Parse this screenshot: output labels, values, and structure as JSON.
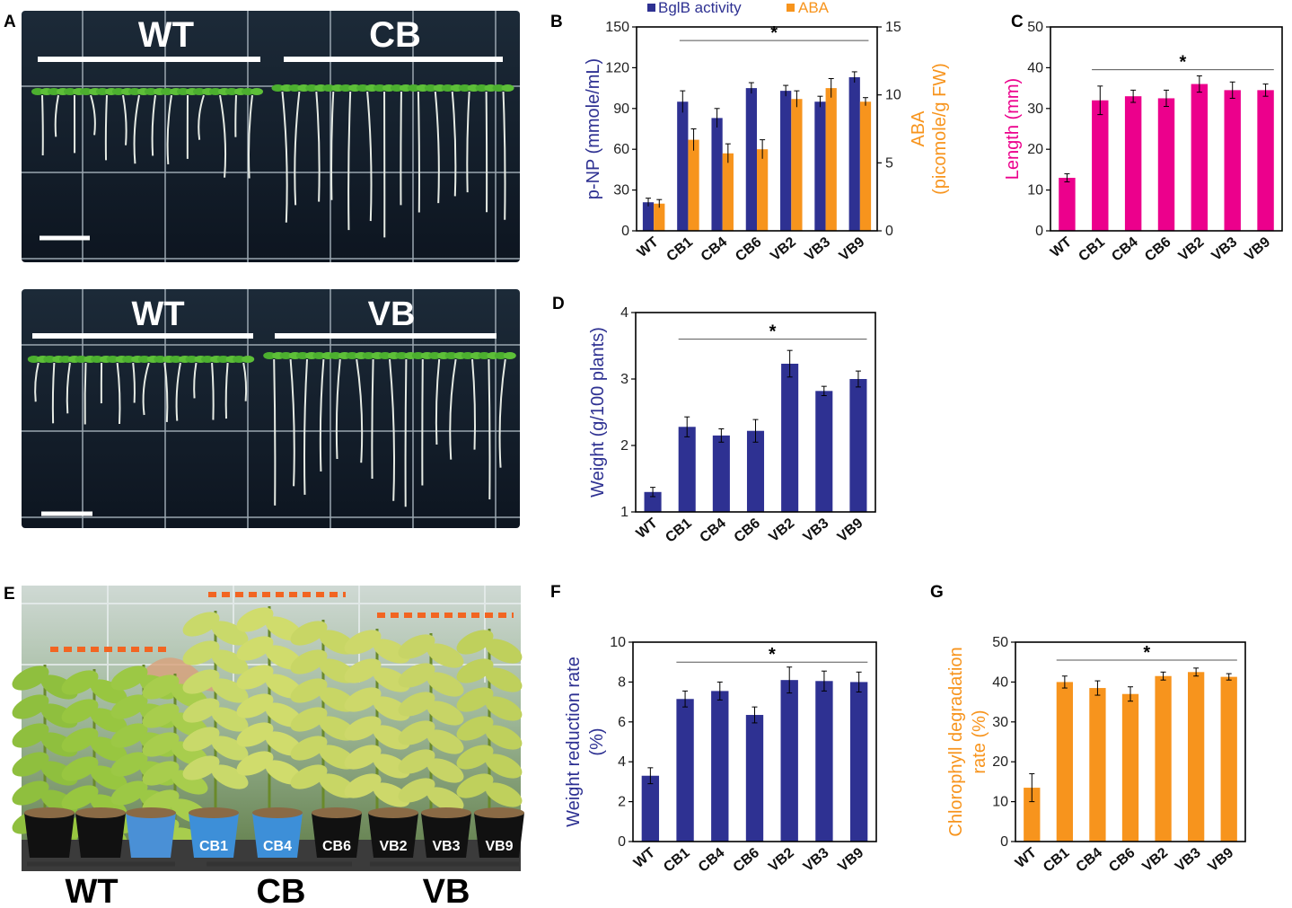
{
  "colors": {
    "blue": "#2e3192",
    "orange": "#f7941d",
    "magenta": "#ec008c",
    "axis": "#000000"
  },
  "panels": {
    "A": {
      "label": "A",
      "top": {
        "left_label": "WT",
        "right_label": "CB"
      },
      "bottom": {
        "left_label": "WT",
        "right_label": "VB"
      }
    },
    "E": {
      "label": "E",
      "pot_labels": [
        "CB1",
        "CB4",
        "CB6",
        "VB2",
        "VB3",
        "VB9"
      ],
      "group_labels": [
        "WT",
        "CB",
        "VB"
      ]
    }
  },
  "chart_data": [
    {
      "id": "B",
      "panel_label": "B",
      "type": "bar",
      "categories": [
        "WT",
        "CB1",
        "CB4",
        "CB6",
        "VB2",
        "VB3",
        "VB9"
      ],
      "series": [
        {
          "name": "BglB activity",
          "axis": "left",
          "values": [
            21,
            95,
            83,
            105,
            103,
            95,
            113
          ],
          "errors": [
            3,
            8,
            7,
            4,
            4,
            4,
            4
          ]
        },
        {
          "name": "ABA",
          "axis": "right",
          "values": [
            2.0,
            6.7,
            5.7,
            6.0,
            9.7,
            10.5,
            9.5
          ],
          "errors": [
            0.3,
            0.8,
            0.7,
            0.7,
            0.6,
            0.7,
            0.3
          ]
        }
      ],
      "ylabel": "p-NP (mmole/mL)",
      "ylim": [
        0,
        150
      ],
      "yticks": [
        0,
        30,
        60,
        90,
        120,
        150
      ],
      "y2label_line1": "ABA",
      "y2label_line2": "(picomole/g FW)",
      "y2lim": [
        0,
        15
      ],
      "y2ticks": [
        0,
        5,
        10,
        15
      ],
      "significance": "*",
      "sig_from": 1,
      "sig_to": 6,
      "sig_value": 140
    },
    {
      "id": "C",
      "panel_label": "C",
      "type": "bar",
      "categories": [
        "WT",
        "CB1",
        "CB4",
        "CB6",
        "VB2",
        "VB3",
        "VB9"
      ],
      "series": [
        {
          "name": "Length",
          "values": [
            13,
            32,
            33,
            32.5,
            36,
            34.5,
            34.5
          ],
          "errors": [
            1,
            3.5,
            1.5,
            2,
            2,
            2,
            1.5
          ]
        }
      ],
      "ylabel": "Length (mm)",
      "ylim": [
        0,
        50
      ],
      "yticks": [
        0,
        10,
        20,
        30,
        40,
        50
      ],
      "significance": "*",
      "sig_from": 1,
      "sig_to": 6,
      "sig_value": 39.5
    },
    {
      "id": "D",
      "panel_label": "D",
      "type": "bar",
      "categories": [
        "WT",
        "CB1",
        "CB4",
        "CB6",
        "VB2",
        "VB3",
        "VB9"
      ],
      "series": [
        {
          "name": "Weight",
          "values": [
            1.3,
            2.28,
            2.15,
            2.22,
            3.23,
            2.82,
            3.0
          ],
          "errors": [
            0.07,
            0.15,
            0.1,
            0.17,
            0.2,
            0.07,
            0.12
          ]
        }
      ],
      "ylabel": "Weight (g/100 plants)",
      "ylim": [
        1,
        4
      ],
      "yticks": [
        1,
        2,
        3,
        4
      ],
      "significance": "*",
      "sig_from": 1,
      "sig_to": 6,
      "sig_value": 3.6
    },
    {
      "id": "F",
      "panel_label": "F",
      "type": "bar",
      "categories": [
        "WT",
        "CB1",
        "CB4",
        "CB6",
        "VB2",
        "VB3",
        "VB9"
      ],
      "series": [
        {
          "name": "Weight reduction rate",
          "values": [
            3.3,
            7.15,
            7.55,
            6.35,
            8.1,
            8.05,
            8.0
          ],
          "errors": [
            0.4,
            0.4,
            0.45,
            0.4,
            0.65,
            0.5,
            0.5
          ]
        }
      ],
      "ylabel_line1": "Weight reduction rate",
      "ylabel_line2": "(%)",
      "ylim": [
        0,
        10
      ],
      "yticks": [
        0,
        2,
        4,
        6,
        8,
        10
      ],
      "significance": "*",
      "sig_from": 1,
      "sig_to": 6,
      "sig_value": 9.0
    },
    {
      "id": "G",
      "panel_label": "G",
      "type": "bar",
      "categories": [
        "WT",
        "CB1",
        "CB4",
        "CB6",
        "VB2",
        "VB3",
        "VB9"
      ],
      "series": [
        {
          "name": "Chlorophyll degradation rate",
          "values": [
            13.5,
            40,
            38.5,
            37,
            41.5,
            42.5,
            41.3
          ],
          "errors": [
            3.5,
            1.5,
            1.8,
            1.8,
            1,
            1,
            0.8
          ]
        }
      ],
      "ylabel_line1": "Chlorophyll degradation",
      "ylabel_line2": "rate (%)",
      "ylim": [
        0,
        50
      ],
      "yticks": [
        0,
        10,
        20,
        30,
        40,
        50
      ],
      "significance": "*",
      "sig_from": 1,
      "sig_to": 6,
      "sig_value": 45.5
    }
  ]
}
